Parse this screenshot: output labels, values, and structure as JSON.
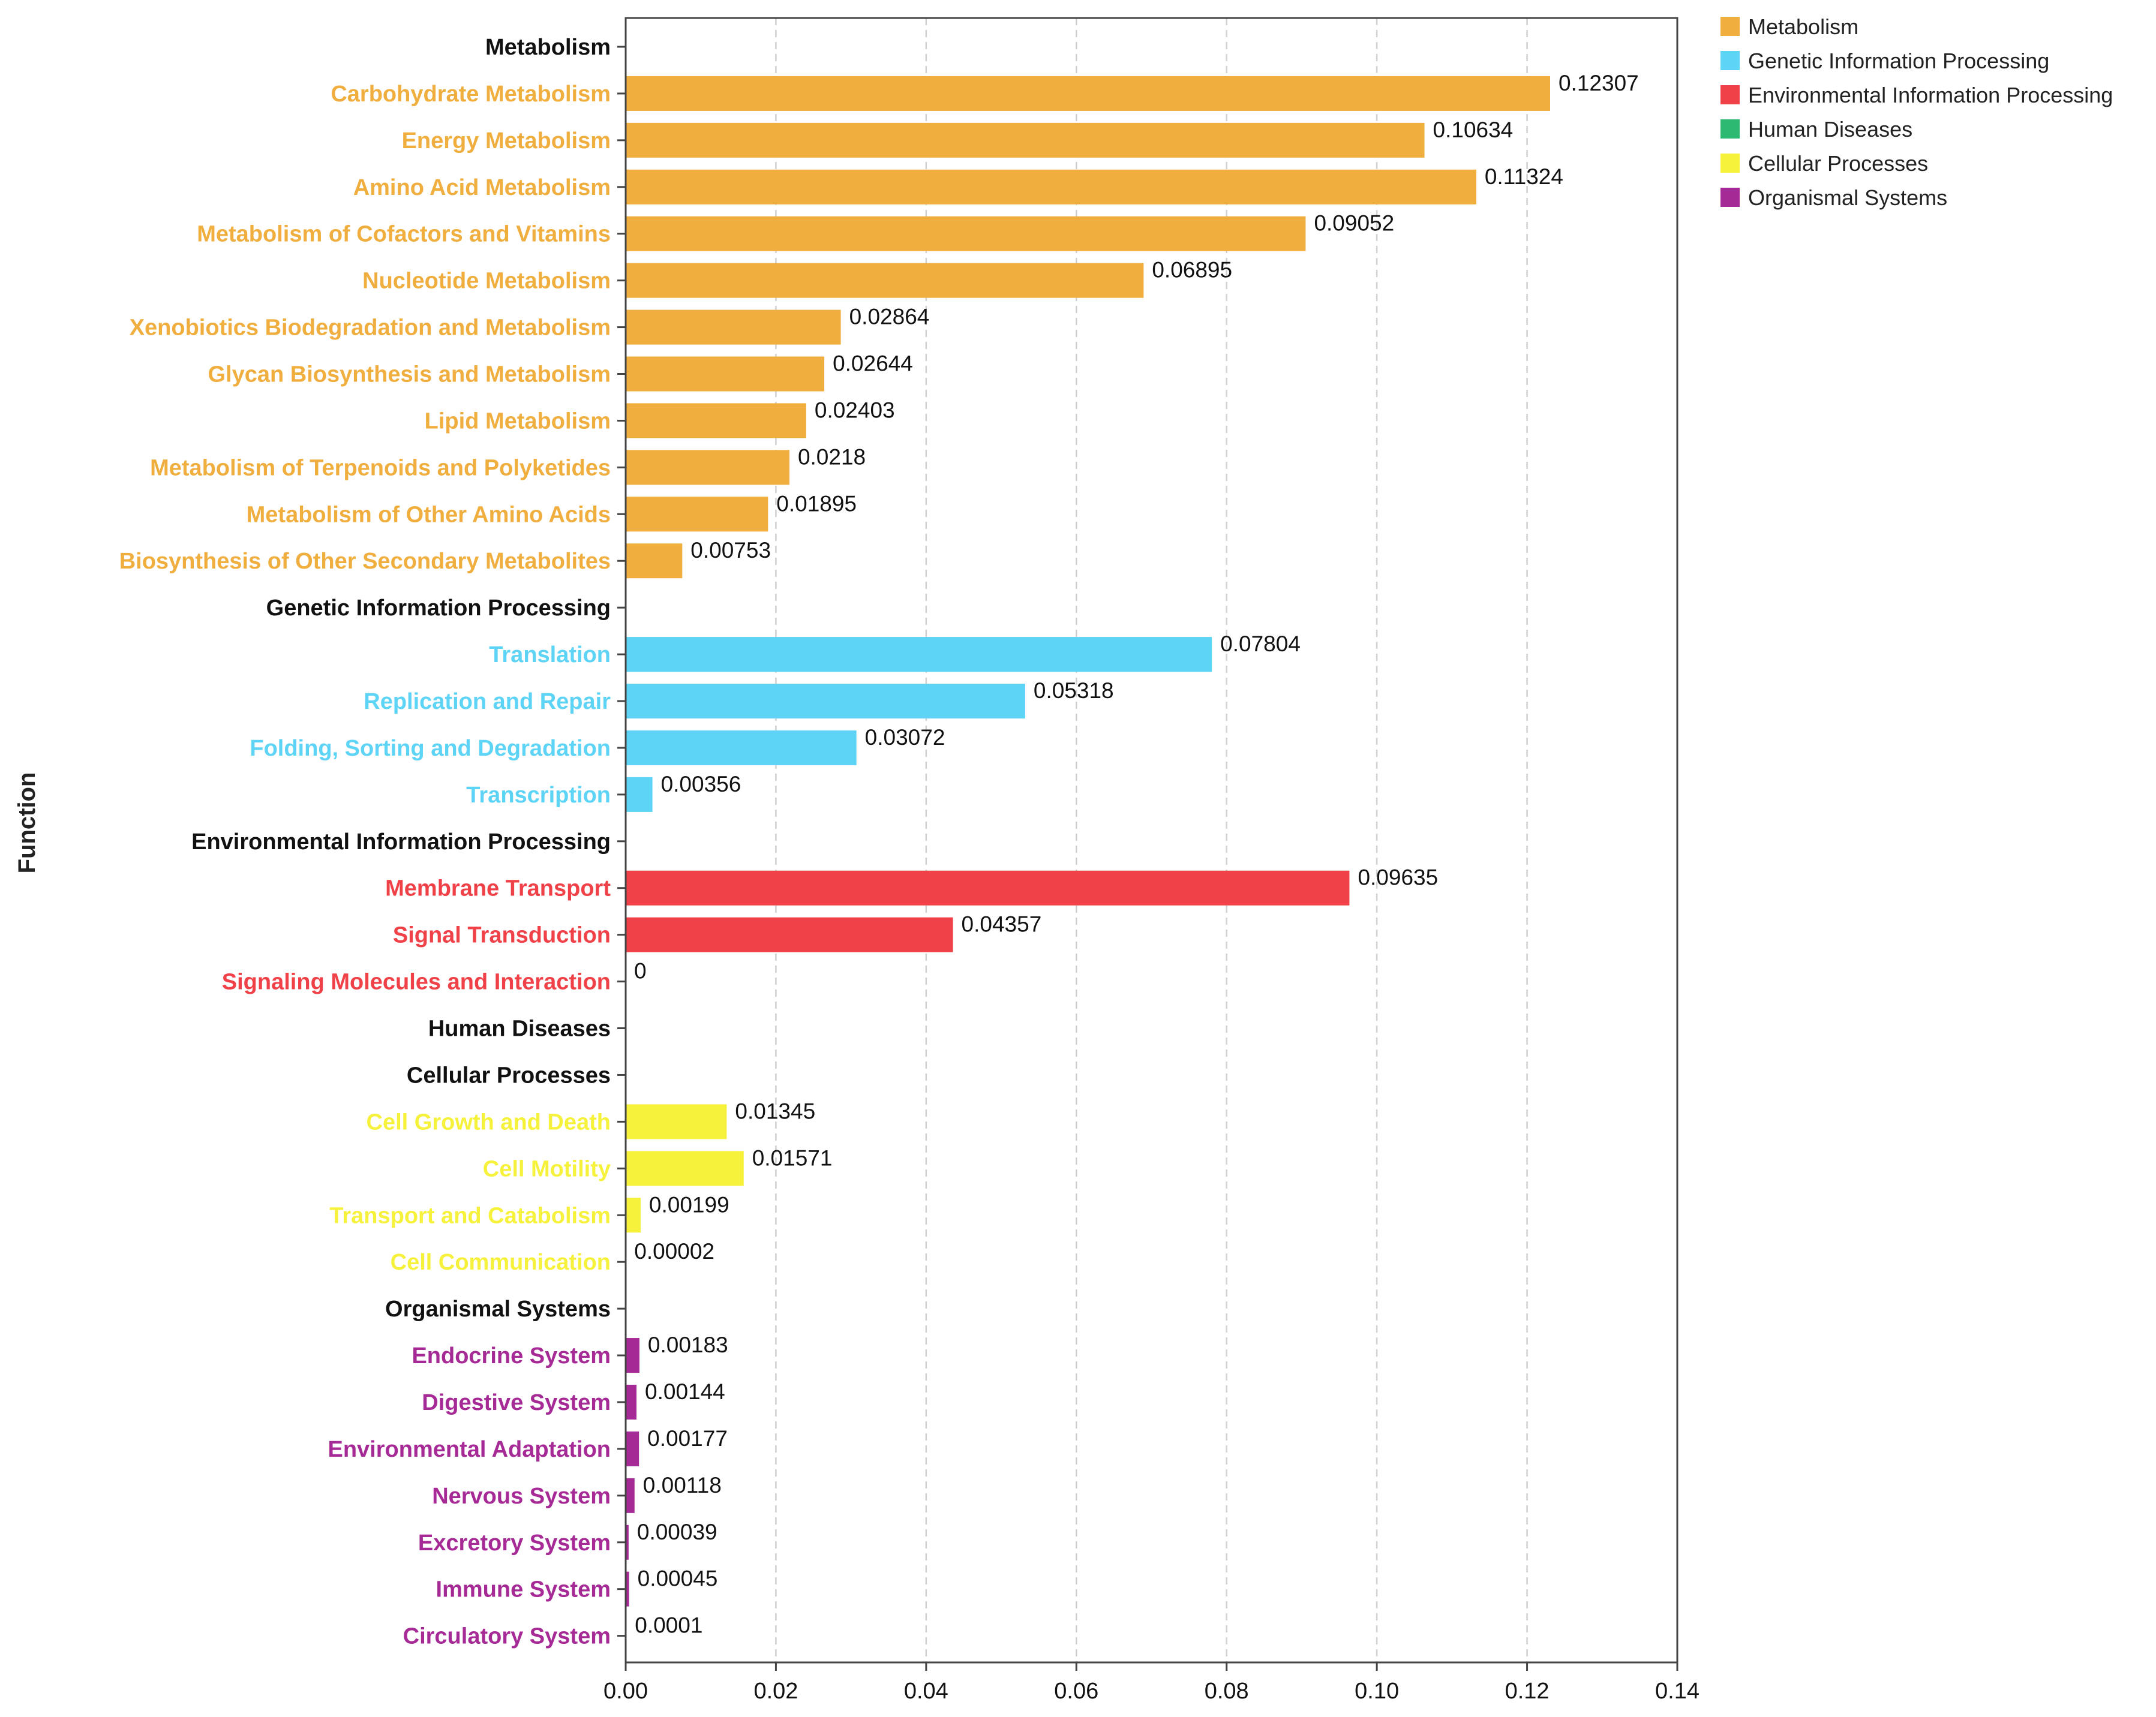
{
  "chart_data": {
    "type": "bar",
    "orientation": "horizontal",
    "ylabel": "Function",
    "xlabel": "",
    "xlim": [
      0,
      0.14
    ],
    "xticks": [
      "0.00",
      "0.02",
      "0.04",
      "0.06",
      "0.08",
      "0.10",
      "0.12",
      "0.14"
    ],
    "grid": "vertical dashed",
    "legend_position": "top-right outside",
    "groups": [
      {
        "name": "Metabolism",
        "color": "#EFAE3E"
      },
      {
        "name": "Genetic Information Processing",
        "color": "#5DD4F5"
      },
      {
        "name": "Environmental Information Processing",
        "color": "#EF4147"
      },
      {
        "name": "Human Diseases",
        "color": "#2DB971"
      },
      {
        "name": "Cellular Processes",
        "color": "#F6F23B"
      },
      {
        "name": "Organismal Systems",
        "color": "#A62A95"
      }
    ],
    "rows": [
      {
        "label": "Metabolism",
        "header": true,
        "group": 0
      },
      {
        "label": "Carbohydrate Metabolism",
        "group": 0,
        "value": 0.12307,
        "value_label": "0.12307"
      },
      {
        "label": "Energy Metabolism",
        "group": 0,
        "value": 0.10634,
        "value_label": "0.10634"
      },
      {
        "label": "Amino Acid Metabolism",
        "group": 0,
        "value": 0.11324,
        "value_label": "0.11324"
      },
      {
        "label": "Metabolism of Cofactors and Vitamins",
        "group": 0,
        "value": 0.09052,
        "value_label": "0.09052"
      },
      {
        "label": "Nucleotide Metabolism",
        "group": 0,
        "value": 0.06895,
        "value_label": "0.06895"
      },
      {
        "label": "Xenobiotics Biodegradation and Metabolism",
        "group": 0,
        "value": 0.02864,
        "value_label": "0.02864"
      },
      {
        "label": "Glycan Biosynthesis and Metabolism",
        "group": 0,
        "value": 0.02644,
        "value_label": "0.02644"
      },
      {
        "label": "Lipid Metabolism",
        "group": 0,
        "value": 0.02403,
        "value_label": "0.02403"
      },
      {
        "label": "Metabolism of Terpenoids and Polyketides",
        "group": 0,
        "value": 0.0218,
        "value_label": "0.0218"
      },
      {
        "label": "Metabolism of Other Amino Acids",
        "group": 0,
        "value": 0.01895,
        "value_label": "0.01895"
      },
      {
        "label": "Biosynthesis of Other Secondary Metabolites",
        "group": 0,
        "value": 0.00753,
        "value_label": "0.00753"
      },
      {
        "label": "Genetic Information Processing",
        "header": true,
        "group": 1
      },
      {
        "label": "Translation",
        "group": 1,
        "value": 0.07804,
        "value_label": "0.07804"
      },
      {
        "label": "Replication and Repair",
        "group": 1,
        "value": 0.05318,
        "value_label": "0.05318"
      },
      {
        "label": "Folding, Sorting and Degradation",
        "group": 1,
        "value": 0.03072,
        "value_label": "0.03072"
      },
      {
        "label": "Transcription",
        "group": 1,
        "value": 0.00356,
        "value_label": "0.00356"
      },
      {
        "label": "Environmental Information Processing",
        "header": true,
        "group": 2
      },
      {
        "label": "Membrane Transport",
        "group": 2,
        "value": 0.09635,
        "value_label": "0.09635"
      },
      {
        "label": "Signal Transduction",
        "group": 2,
        "value": 0.04357,
        "value_label": "0.04357"
      },
      {
        "label": "Signaling Molecules and Interaction",
        "group": 2,
        "value": 0,
        "value_label": "0"
      },
      {
        "label": "Human Diseases",
        "header": true,
        "group": 3
      },
      {
        "label": "Cellular Processes",
        "header": true,
        "group": 4
      },
      {
        "label": "Cell Growth and Death",
        "group": 4,
        "value": 0.01345,
        "value_label": "0.01345"
      },
      {
        "label": "Cell Motility",
        "group": 4,
        "value": 0.01571,
        "value_label": "0.01571"
      },
      {
        "label": "Transport and Catabolism",
        "group": 4,
        "value": 0.00199,
        "value_label": "0.00199"
      },
      {
        "label": "Cell Communication",
        "group": 4,
        "value": 2e-05,
        "value_label": "0.00002"
      },
      {
        "label": "Organismal Systems",
        "header": true,
        "group": 5
      },
      {
        "label": "Endocrine System",
        "group": 5,
        "value": 0.00183,
        "value_label": "0.00183"
      },
      {
        "label": "Digestive System",
        "group": 5,
        "value": 0.00144,
        "value_label": "0.00144"
      },
      {
        "label": "Environmental Adaptation",
        "group": 5,
        "value": 0.00177,
        "value_label": "0.00177"
      },
      {
        "label": "Nervous System",
        "group": 5,
        "value": 0.00118,
        "value_label": "0.00118"
      },
      {
        "label": "Excretory System",
        "group": 5,
        "value": 0.00039,
        "value_label": "0.00039"
      },
      {
        "label": "Immune System",
        "group": 5,
        "value": 0.00045,
        "value_label": "0.00045"
      },
      {
        "label": "Circulatory System",
        "group": 5,
        "value": 0.0001,
        "value_label": "0.0001"
      }
    ]
  }
}
